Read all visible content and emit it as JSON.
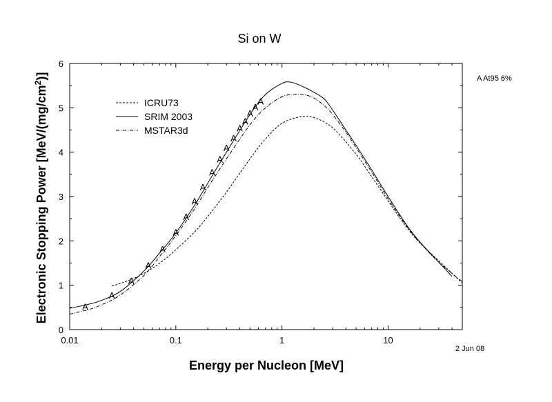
{
  "chart_data": {
    "type": "line",
    "title": "Si on W",
    "xlabel": "Energy per Nucleon [MeV]",
    "ylabel": "Electronic Stopping Power [MeV/(mg/cm",
    "ylabel_sup": "2",
    "ylabel_end": ")]",
    "xscale": "log",
    "xlim": [
      0.01,
      50
    ],
    "ylim": [
      0,
      6
    ],
    "x_tick_labels": [
      "0.01",
      "0.1",
      "1",
      "10"
    ],
    "y_tick_labels": [
      "0",
      "1",
      "2",
      "3",
      "4",
      "5",
      "6"
    ],
    "legend_position": "top-left",
    "series": [
      {
        "name": "ICRU73",
        "style": "dashed",
        "x": [
          0.025,
          0.04,
          0.06,
          0.08,
          0.1,
          0.15,
          0.2,
          0.3,
          0.5,
          0.7,
          1.0,
          1.5,
          2.0,
          3.0,
          5.0,
          7.0,
          10,
          15,
          20,
          30,
          50
        ],
        "y": [
          0.98,
          1.15,
          1.38,
          1.6,
          1.8,
          2.2,
          2.55,
          3.1,
          3.85,
          4.3,
          4.65,
          4.8,
          4.78,
          4.55,
          3.95,
          3.45,
          2.9,
          2.3,
          1.95,
          1.55,
          1.05
        ]
      },
      {
        "name": "SRIM 2003",
        "style": "solid",
        "x": [
          0.01,
          0.015,
          0.02,
          0.03,
          0.05,
          0.07,
          0.1,
          0.15,
          0.2,
          0.3,
          0.5,
          0.7,
          1.0,
          1.2,
          1.5,
          2.0,
          2.5,
          3.0,
          4.0,
          5.0,
          7.0,
          10,
          15,
          20,
          30,
          40
        ],
        "y": [
          0.48,
          0.57,
          0.66,
          0.86,
          1.32,
          1.72,
          2.18,
          2.8,
          3.3,
          4.0,
          4.85,
          5.3,
          5.55,
          5.58,
          5.5,
          5.35,
          5.2,
          4.95,
          4.5,
          4.15,
          3.6,
          3.0,
          2.35,
          1.97,
          1.52,
          1.2
        ]
      },
      {
        "name": "MSTAR3d",
        "style": "dash-dot",
        "x": [
          0.01,
          0.015,
          0.02,
          0.03,
          0.05,
          0.07,
          0.1,
          0.15,
          0.2,
          0.3,
          0.5,
          0.7,
          1.0,
          1.3,
          1.6,
          2.0,
          2.5,
          3.0,
          4.0,
          5.0,
          7.0,
          10,
          15,
          20,
          30,
          50
        ],
        "y": [
          0.35,
          0.45,
          0.56,
          0.78,
          1.22,
          1.64,
          2.12,
          2.72,
          3.2,
          3.85,
          4.62,
          5.0,
          5.25,
          5.3,
          5.3,
          5.22,
          5.05,
          4.85,
          4.45,
          4.1,
          3.55,
          2.95,
          2.33,
          1.96,
          1.52,
          1.08
        ]
      }
    ],
    "data_points": {
      "label": "A",
      "x": [
        0.014,
        0.025,
        0.038,
        0.055,
        0.075,
        0.1,
        0.125,
        0.15,
        0.18,
        0.22,
        0.26,
        0.3,
        0.35,
        0.4,
        0.45,
        0.5,
        0.56,
        0.63
      ],
      "y": [
        0.52,
        0.78,
        1.1,
        1.45,
        1.82,
        2.2,
        2.55,
        2.9,
        3.22,
        3.55,
        3.85,
        4.1,
        4.32,
        4.55,
        4.7,
        4.88,
        5.02,
        5.15
      ]
    },
    "annotations": [
      "A At95 6%",
      "2 Jun 08"
    ]
  }
}
